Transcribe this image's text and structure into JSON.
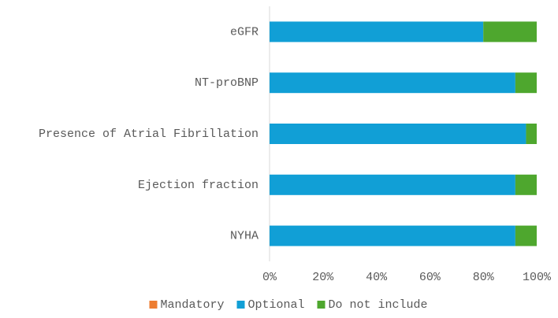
{
  "chart_data": {
    "type": "stacked-bar-horizontal",
    "categories": [
      "eGFR",
      "NT-proBNP",
      "Presence of Atrial Fibrillation",
      "Ejection fraction",
      "NYHA"
    ],
    "series": [
      {
        "name": "Mandatory",
        "color": "#ed7d31",
        "values": [
          0,
          0,
          0,
          0,
          0
        ]
      },
      {
        "name": "Optional",
        "color": "#119fd6",
        "values": [
          80,
          92,
          96,
          92,
          92
        ]
      },
      {
        "name": "Do not include",
        "color": "#4ea72e",
        "values": [
          20,
          8,
          4,
          8,
          8
        ]
      }
    ],
    "xlim": [
      0,
      100
    ],
    "xticks": [
      {
        "value": 0,
        "label": "0%"
      },
      {
        "value": 20,
        "label": "20%"
      },
      {
        "value": 40,
        "label": "40%"
      },
      {
        "value": 60,
        "label": "60%"
      },
      {
        "value": 80,
        "label": "80%"
      },
      {
        "value": 100,
        "label": "100%"
      }
    ],
    "legend": "bottom"
  }
}
